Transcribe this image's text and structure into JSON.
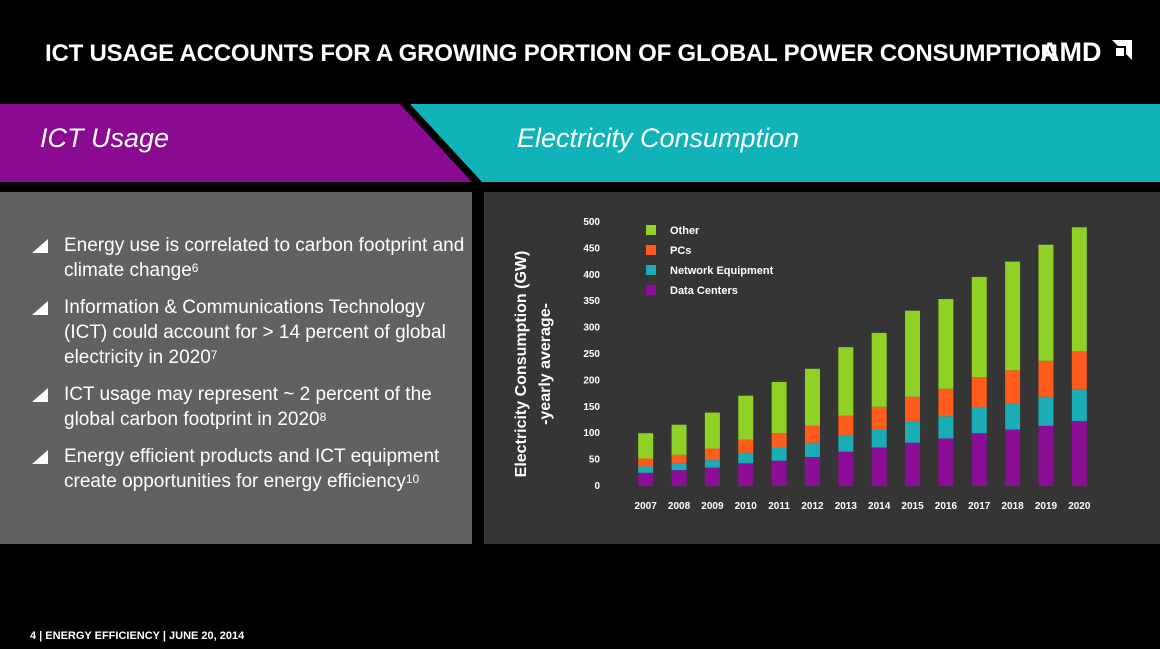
{
  "slide": {
    "title": "ICT USAGE ACCOUNTS FOR A GROWING PORTION OF GLOBAL POWER CONSUMPTION",
    "logo_text": "AMD",
    "left_header": "ICT Usage",
    "right_header": "Electricity Consumption",
    "footer": "4  |  ENERGY EFFICIENCY |  JUNE 20, 2014",
    "colors": {
      "left_header_bg": "#8a0a92",
      "right_header_bg": "#0fb3b8",
      "left_panel_bg": "#616161",
      "right_panel_bg": "#353535"
    }
  },
  "bullets": [
    {
      "text": "Energy use is correlated to carbon footprint and climate change",
      "sup": "6"
    },
    {
      "text": "Information & Communications Technology (ICT) could account for > 14 percent of global electricity in 2020",
      "sup": "7"
    },
    {
      "text": "ICT usage may represent ~ 2 percent of the global carbon footprint in 2020",
      "sup": "8"
    },
    {
      "text": "Energy efficient products and ICT equipment create opportunities for energy efficiency",
      "sup": "10"
    }
  ],
  "chart_data": {
    "type": "bar",
    "stacked": true,
    "title": "",
    "xlabel": "",
    "ylabel": "Electricity Consumption (GW)",
    "ylabel2": "-yearly average-",
    "ylim": [
      0,
      500
    ],
    "yticks": [
      0,
      50,
      100,
      150,
      200,
      250,
      300,
      350,
      400,
      450,
      500
    ],
    "grid": false,
    "legend_position": "top-left",
    "categories": [
      "2007",
      "2008",
      "2009",
      "2010",
      "2011",
      "2012",
      "2013",
      "2014",
      "2015",
      "2016",
      "2017",
      "2018",
      "2019",
      "2020"
    ],
    "series": [
      {
        "name": "Data Centers",
        "color": "#8c0e96",
        "values": [
          25,
          30,
          35,
          43,
          48,
          55,
          65,
          73,
          82,
          90,
          100,
          107,
          114,
          123
        ]
      },
      {
        "name": "Network Equipment",
        "color": "#1badb6",
        "values": [
          12,
          12,
          14,
          20,
          24,
          27,
          30,
          35,
          40,
          42,
          48,
          50,
          55,
          60
        ]
      },
      {
        "name": "PCs",
        "color": "#fe5b1d",
        "values": [
          15,
          17,
          22,
          25,
          28,
          32,
          38,
          42,
          47,
          52,
          58,
          62,
          68,
          72
        ]
      },
      {
        "name": "Other",
        "color": "#8fd225",
        "values": [
          48,
          57,
          68,
          83,
          97,
          108,
          130,
          140,
          163,
          170,
          190,
          206,
          220,
          235
        ]
      }
    ],
    "legend_order": [
      "Other",
      "PCs",
      "Network Equipment",
      "Data Centers"
    ]
  }
}
